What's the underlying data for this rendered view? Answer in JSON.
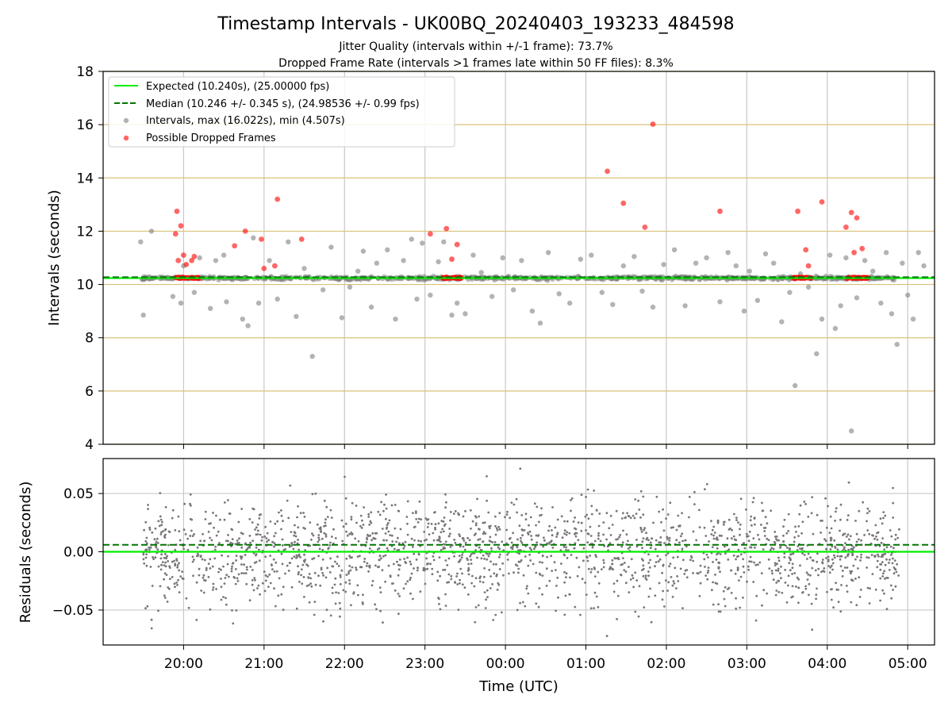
{
  "chart_data": [
    {
      "type": "scatter",
      "title": "Timestamp Intervals - UK00BQ_20240403_193233_484598",
      "subtitle_1": "Jitter Quality (intervals within +/-1 frame): 73.7%",
      "subtitle_2": "Dropped Frame Rate (intervals >1 frames late within 50 FF files): 8.3%",
      "xlabel": "",
      "ylabel": "Intervals (seconds)",
      "xlim": [
        "19:00",
        "05:20"
      ],
      "ylim": [
        4,
        18
      ],
      "y_ticks": [
        "4",
        "6",
        "8",
        "10",
        "12",
        "14",
        "16",
        "18"
      ],
      "grid": true,
      "legend_position": "upper-left",
      "reference_lines": [
        {
          "name": "Expected (10.240s), (25.00000 fps)",
          "y": 10.24,
          "style": "solid",
          "color": "#00ee00"
        },
        {
          "name": "Median (10.246 +/- 0.345 s), (24.98536 +/- 0.99 fps)",
          "y": 10.246,
          "style": "dashed",
          "color": "#007700"
        }
      ],
      "series": [
        {
          "name": "Intervals, max (16.022s), min (4.507s)",
          "color": "#808080",
          "note": "approx. 1800 intervals, mostly near 10.24 s, sampled approximately",
          "points": [
            [
              "19:28",
              11.6
            ],
            [
              "19:30",
              8.85
            ],
            [
              "19:36",
              12.0
            ],
            [
              "19:52",
              9.55
            ],
            [
              "19:58",
              9.3
            ],
            [
              "20:00",
              10.7
            ],
            [
              "20:08",
              9.7
            ],
            [
              "20:12",
              11.0
            ],
            [
              "20:20",
              9.1
            ],
            [
              "20:24",
              10.9
            ],
            [
              "20:30",
              11.1
            ],
            [
              "20:32",
              9.35
            ],
            [
              "20:44",
              8.7
            ],
            [
              "20:48",
              8.45
            ],
            [
              "20:52",
              11.75
            ],
            [
              "20:56",
              9.3
            ],
            [
              "21:04",
              10.9
            ],
            [
              "21:10",
              9.45
            ],
            [
              "21:18",
              11.6
            ],
            [
              "21:24",
              8.8
            ],
            [
              "21:30",
              10.6
            ],
            [
              "21:36",
              7.3
            ],
            [
              "21:44",
              9.8
            ],
            [
              "21:50",
              11.4
            ],
            [
              "21:58",
              8.75
            ],
            [
              "22:04",
              9.9
            ],
            [
              "22:10",
              10.5
            ],
            [
              "22:14",
              11.25
            ],
            [
              "22:20",
              9.15
            ],
            [
              "22:24",
              10.8
            ],
            [
              "22:32",
              11.3
            ],
            [
              "22:38",
              8.7
            ],
            [
              "22:44",
              10.9
            ],
            [
              "22:50",
              11.7
            ],
            [
              "22:54",
              9.45
            ],
            [
              "22:58",
              11.55
            ],
            [
              "23:04",
              9.6
            ],
            [
              "23:10",
              10.85
            ],
            [
              "23:14",
              11.6
            ],
            [
              "23:20",
              8.85
            ],
            [
              "23:24",
              9.3
            ],
            [
              "23:30",
              8.9
            ],
            [
              "23:36",
              11.1
            ],
            [
              "23:42",
              10.45
            ],
            [
              "23:50",
              9.55
            ],
            [
              "23:58",
              11.0
            ],
            [
              "00:06",
              9.8
            ],
            [
              "00:12",
              10.9
            ],
            [
              "00:20",
              9.0
            ],
            [
              "00:26",
              8.55
            ],
            [
              "00:32",
              11.2
            ],
            [
              "00:40",
              9.65
            ],
            [
              "00:48",
              9.3
            ],
            [
              "00:56",
              10.95
            ],
            [
              "01:04",
              11.1
            ],
            [
              "01:12",
              9.7
            ],
            [
              "01:20",
              9.25
            ],
            [
              "01:28",
              10.7
            ],
            [
              "01:36",
              11.05
            ],
            [
              "01:42",
              9.75
            ],
            [
              "01:50",
              9.15
            ],
            [
              "01:58",
              10.75
            ],
            [
              "02:06",
              11.3
            ],
            [
              "02:14",
              9.2
            ],
            [
              "02:22",
              10.8
            ],
            [
              "02:30",
              11.0
            ],
            [
              "02:40",
              9.35
            ],
            [
              "02:46",
              11.2
            ],
            [
              "02:52",
              10.7
            ],
            [
              "02:58",
              9.0
            ],
            [
              "03:02",
              10.5
            ],
            [
              "03:08",
              9.4
            ],
            [
              "03:14",
              11.15
            ],
            [
              "03:20",
              10.8
            ],
            [
              "03:26",
              8.6
            ],
            [
              "03:32",
              9.7
            ],
            [
              "03:36",
              6.2
            ],
            [
              "03:40",
              10.4
            ],
            [
              "03:46",
              9.9
            ],
            [
              "03:52",
              7.4
            ],
            [
              "03:56",
              8.7
            ],
            [
              "04:02",
              11.1
            ],
            [
              "04:06",
              8.35
            ],
            [
              "04:10",
              9.2
            ],
            [
              "04:14",
              11.0
            ],
            [
              "04:18",
              4.5
            ],
            [
              "04:22",
              9.5
            ],
            [
              "04:28",
              10.9
            ],
            [
              "04:34",
              10.5
            ],
            [
              "04:40",
              9.3
            ],
            [
              "04:44",
              11.2
            ],
            [
              "04:48",
              8.9
            ],
            [
              "04:52",
              7.75
            ],
            [
              "04:56",
              10.8
            ],
            [
              "05:00",
              9.6
            ],
            [
              "05:04",
              8.7
            ],
            [
              "05:08",
              11.2
            ],
            [
              "05:12",
              10.7
            ]
          ]
        },
        {
          "name": "Possible Dropped Frames",
          "color": "#ff0000",
          "note": "approximate positions; dense clusters near 10.25 s omitted",
          "points": [
            [
              "19:54",
              11.9
            ],
            [
              "19:55",
              12.75
            ],
            [
              "19:56",
              10.9
            ],
            [
              "19:58",
              12.2
            ],
            [
              "20:00",
              11.1
            ],
            [
              "20:02",
              10.75
            ],
            [
              "20:06",
              10.9
            ],
            [
              "20:08",
              11.05
            ],
            [
              "20:38",
              11.45
            ],
            [
              "20:46",
              12.0
            ],
            [
              "20:58",
              11.7
            ],
            [
              "21:00",
              10.6
            ],
            [
              "21:08",
              10.7
            ],
            [
              "21:10",
              13.2
            ],
            [
              "21:28",
              11.7
            ],
            [
              "23:04",
              11.9
            ],
            [
              "23:16",
              12.1
            ],
            [
              "23:20",
              10.95
            ],
            [
              "23:24",
              11.5
            ],
            [
              "01:16",
              14.25
            ],
            [
              "01:28",
              13.05
            ],
            [
              "01:44",
              12.15
            ],
            [
              "01:50",
              16.02
            ],
            [
              "02:40",
              12.75
            ],
            [
              "03:38",
              12.75
            ],
            [
              "03:44",
              11.3
            ],
            [
              "03:46",
              10.7
            ],
            [
              "03:56",
              13.1
            ],
            [
              "04:14",
              12.15
            ],
            [
              "04:18",
              12.7
            ],
            [
              "04:20",
              11.2
            ],
            [
              "04:22",
              12.5
            ],
            [
              "04:26",
              11.35
            ]
          ]
        }
      ]
    },
    {
      "type": "scatter",
      "title": "",
      "xlabel": "Time (UTC)",
      "ylabel": "Residuals (seconds)",
      "x_ticks": [
        "20:00",
        "21:00",
        "22:00",
        "23:00",
        "00:00",
        "01:00",
        "02:00",
        "03:00",
        "04:00",
        "05:00"
      ],
      "y_ticks": [
        "−0.05",
        "0.00",
        "0.05"
      ],
      "ylim": [
        -0.08,
        0.08
      ],
      "grid": true,
      "reference_lines": [
        {
          "y": 0.0,
          "style": "solid",
          "color": "#00ee00"
        },
        {
          "y": 0.006,
          "style": "dashed",
          "color": "#007700"
        }
      ],
      "series": [
        {
          "color": "#808080",
          "note": "approx. 2000 residual points spread roughly uniformly between -0.08 and 0.08 s across 19:30 to 04:50 UTC"
        }
      ]
    }
  ]
}
